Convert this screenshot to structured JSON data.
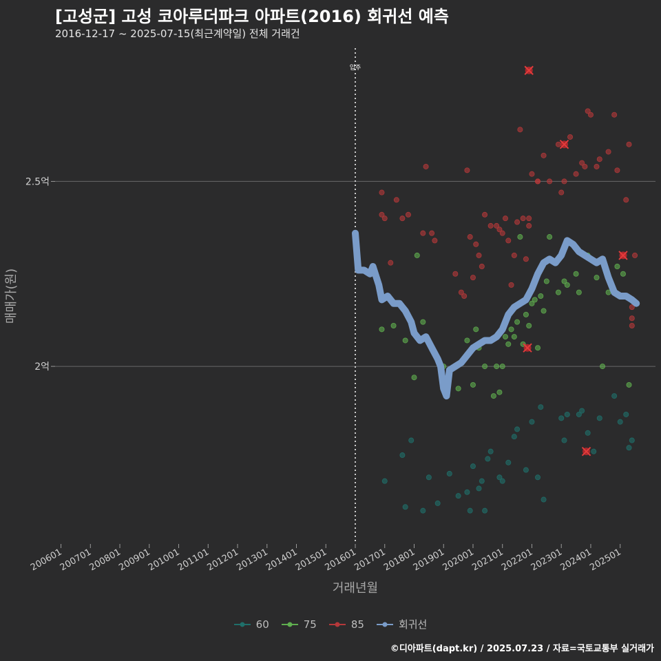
{
  "chart_data": {
    "type": "scatter",
    "title": "[고성군] 고성 코아루더파크 아파트(2016) 회귀선 예측",
    "subtitle": "2016-12-17 ~ 2025-07-15(최근계약일) 전체 거래건",
    "xlabel": "거래년월",
    "ylabel": "매매가(원)",
    "x_ticks": [
      "200601",
      "200701",
      "200801",
      "200901",
      "201001",
      "201101",
      "201201",
      "201301",
      "201401",
      "201501",
      "201601",
      "201701",
      "201801",
      "201901",
      "202001",
      "202101",
      "202201",
      "202301",
      "202401",
      "202501"
    ],
    "x_range": [
      2005.8,
      2026.2
    ],
    "y_ticks": [
      {
        "value": 2.0,
        "label": "2억"
      },
      {
        "value": 2.5,
        "label": "2.5억"
      }
    ],
    "y_range": [
      1.52,
      2.86
    ],
    "annotation": {
      "x": 2016.0,
      "label": "입주"
    },
    "series": [
      {
        "name": "60",
        "color": "#1f6f6a",
        "points": [
          [
            2017.0,
            1.69
          ],
          [
            2017.6,
            1.76
          ],
          [
            2017.7,
            1.62
          ],
          [
            2017.9,
            1.8
          ],
          [
            2018.3,
            1.61
          ],
          [
            2018.5,
            1.7
          ],
          [
            2018.8,
            1.63
          ],
          [
            2019.2,
            1.71
          ],
          [
            2019.5,
            1.65
          ],
          [
            2019.8,
            1.66
          ],
          [
            2019.9,
            1.61
          ],
          [
            2020.0,
            1.73
          ],
          [
            2020.2,
            1.67
          ],
          [
            2020.3,
            1.69
          ],
          [
            2020.4,
            1.61
          ],
          [
            2020.5,
            1.75
          ],
          [
            2020.6,
            1.77
          ],
          [
            2020.9,
            1.7
          ],
          [
            2021.0,
            1.69
          ],
          [
            2021.2,
            1.74
          ],
          [
            2021.4,
            1.81
          ],
          [
            2021.5,
            1.83
          ],
          [
            2021.8,
            1.72
          ],
          [
            2022.0,
            1.85
          ],
          [
            2022.2,
            1.7
          ],
          [
            2022.4,
            1.64
          ],
          [
            2022.3,
            1.89
          ],
          [
            2023.0,
            1.86
          ],
          [
            2023.1,
            1.8
          ],
          [
            2023.2,
            1.87
          ],
          [
            2023.6,
            1.87
          ],
          [
            2023.7,
            1.88
          ],
          [
            2023.9,
            1.82
          ],
          [
            2024.1,
            1.77
          ],
          [
            2024.3,
            1.86
          ],
          [
            2024.8,
            1.92
          ],
          [
            2025.0,
            1.85
          ],
          [
            2025.2,
            1.87
          ],
          [
            2025.4,
            1.8
          ],
          [
            2025.3,
            1.78
          ]
        ]
      },
      {
        "name": "75",
        "color": "#5fae4f",
        "points": [
          [
            2016.9,
            2.1
          ],
          [
            2017.3,
            2.11
          ],
          [
            2017.7,
            2.07
          ],
          [
            2018.1,
            2.3
          ],
          [
            2018.0,
            1.97
          ],
          [
            2018.3,
            2.12
          ],
          [
            2018.6,
            2.05
          ],
          [
            2019.0,
            2.0
          ],
          [
            2019.5,
            1.94
          ],
          [
            2019.8,
            2.07
          ],
          [
            2020.0,
            1.95
          ],
          [
            2020.1,
            2.1
          ],
          [
            2020.2,
            2.05
          ],
          [
            2020.4,
            2.0
          ],
          [
            2020.7,
            1.92
          ],
          [
            2020.8,
            2.0
          ],
          [
            2020.9,
            1.93
          ],
          [
            2021.0,
            2.0
          ],
          [
            2021.1,
            2.08
          ],
          [
            2021.2,
            2.06
          ],
          [
            2021.3,
            2.1
          ],
          [
            2021.4,
            2.08
          ],
          [
            2021.5,
            2.12
          ],
          [
            2021.7,
            2.06
          ],
          [
            2021.8,
            2.14
          ],
          [
            2021.9,
            2.11
          ],
          [
            2022.0,
            2.17
          ],
          [
            2022.1,
            2.18
          ],
          [
            2022.2,
            2.05
          ],
          [
            2022.3,
            2.19
          ],
          [
            2022.4,
            2.15
          ],
          [
            2022.5,
            2.23
          ],
          [
            2022.6,
            2.35
          ],
          [
            2022.9,
            2.2
          ],
          [
            2023.1,
            2.23
          ],
          [
            2023.2,
            2.22
          ],
          [
            2023.5,
            2.25
          ],
          [
            2023.6,
            2.2
          ],
          [
            2023.9,
            2.3
          ],
          [
            2024.2,
            2.24
          ],
          [
            2024.4,
            2.0
          ],
          [
            2024.6,
            2.2
          ],
          [
            2024.9,
            2.27
          ],
          [
            2025.1,
            2.25
          ],
          [
            2025.3,
            1.95
          ],
          [
            2021.6,
            2.35
          ]
        ]
      },
      {
        "name": "85",
        "color": "#b5383a",
        "points": [
          [
            2016.9,
            2.47
          ],
          [
            2016.9,
            2.41
          ],
          [
            2017.0,
            2.4
          ],
          [
            2017.2,
            2.28
          ],
          [
            2017.4,
            2.45
          ],
          [
            2017.6,
            2.4
          ],
          [
            2017.8,
            2.41
          ],
          [
            2018.3,
            2.36
          ],
          [
            2018.4,
            2.54
          ],
          [
            2018.6,
            2.36
          ],
          [
            2018.7,
            2.34
          ],
          [
            2019.4,
            2.25
          ],
          [
            2019.6,
            2.2
          ],
          [
            2019.7,
            2.19
          ],
          [
            2019.8,
            2.53
          ],
          [
            2019.9,
            2.35
          ],
          [
            2020.0,
            2.24
          ],
          [
            2020.1,
            2.33
          ],
          [
            2020.2,
            2.3
          ],
          [
            2020.3,
            2.27
          ],
          [
            2020.4,
            2.41
          ],
          [
            2020.6,
            2.38
          ],
          [
            2020.8,
            2.38
          ],
          [
            2020.9,
            2.37
          ],
          [
            2021.0,
            2.36
          ],
          [
            2021.1,
            2.4
          ],
          [
            2021.2,
            2.34
          ],
          [
            2021.3,
            2.22
          ],
          [
            2021.4,
            2.3
          ],
          [
            2021.5,
            2.39
          ],
          [
            2021.6,
            2.64
          ],
          [
            2021.7,
            2.4
          ],
          [
            2021.8,
            2.29
          ],
          [
            2021.9,
            2.38
          ],
          [
            2022.0,
            2.52
          ],
          [
            2022.2,
            2.5
          ],
          [
            2022.4,
            2.57
          ],
          [
            2022.6,
            2.5
          ],
          [
            2022.9,
            2.6
          ],
          [
            2023.0,
            2.47
          ],
          [
            2023.1,
            2.5
          ],
          [
            2023.3,
            2.62
          ],
          [
            2023.5,
            2.52
          ],
          [
            2023.7,
            2.55
          ],
          [
            2023.8,
            2.54
          ],
          [
            2023.9,
            2.69
          ],
          [
            2024.0,
            2.68
          ],
          [
            2024.2,
            2.54
          ],
          [
            2024.3,
            2.56
          ],
          [
            2024.6,
            2.58
          ],
          [
            2024.8,
            2.68
          ],
          [
            2024.9,
            2.53
          ],
          [
            2025.1,
            2.3
          ],
          [
            2025.2,
            2.45
          ],
          [
            2025.3,
            2.6
          ],
          [
            2025.4,
            2.16
          ],
          [
            2025.4,
            2.13
          ],
          [
            2025.5,
            2.3
          ],
          [
            2025.4,
            2.11
          ],
          [
            2022.2,
            2.5
          ],
          [
            2021.9,
            2.4
          ]
        ]
      },
      {
        "name": "회귀선",
        "color": "#7a9cc9",
        "points": [
          [
            2016.0,
            2.36
          ],
          [
            2016.1,
            2.26
          ],
          [
            2016.3,
            2.26
          ],
          [
            2016.5,
            2.25
          ],
          [
            2016.6,
            2.27
          ],
          [
            2016.8,
            2.22
          ],
          [
            2016.9,
            2.18
          ],
          [
            2017.1,
            2.19
          ],
          [
            2017.3,
            2.17
          ],
          [
            2017.5,
            2.17
          ],
          [
            2017.7,
            2.15
          ],
          [
            2017.9,
            2.12
          ],
          [
            2018.0,
            2.09
          ],
          [
            2018.2,
            2.07
          ],
          [
            2018.4,
            2.08
          ],
          [
            2018.6,
            2.05
          ],
          [
            2018.8,
            2.02
          ],
          [
            2018.9,
            2.0
          ],
          [
            2019.0,
            1.94
          ],
          [
            2019.1,
            1.92
          ],
          [
            2019.2,
            1.99
          ],
          [
            2019.4,
            2.0
          ],
          [
            2019.6,
            2.01
          ],
          [
            2019.8,
            2.03
          ],
          [
            2020.0,
            2.05
          ],
          [
            2020.2,
            2.06
          ],
          [
            2020.4,
            2.07
          ],
          [
            2020.6,
            2.07
          ],
          [
            2020.8,
            2.08
          ],
          [
            2021.0,
            2.1
          ],
          [
            2021.2,
            2.14
          ],
          [
            2021.4,
            2.16
          ],
          [
            2021.6,
            2.17
          ],
          [
            2021.8,
            2.18
          ],
          [
            2022.0,
            2.21
          ],
          [
            2022.2,
            2.25
          ],
          [
            2022.4,
            2.28
          ],
          [
            2022.6,
            2.29
          ],
          [
            2022.8,
            2.28
          ],
          [
            2023.0,
            2.3
          ],
          [
            2023.2,
            2.34
          ],
          [
            2023.4,
            2.33
          ],
          [
            2023.6,
            2.31
          ],
          [
            2023.8,
            2.3
          ],
          [
            2024.0,
            2.29
          ],
          [
            2024.2,
            2.28
          ],
          [
            2024.4,
            2.29
          ],
          [
            2024.6,
            2.24
          ],
          [
            2024.8,
            2.2
          ],
          [
            2025.0,
            2.19
          ],
          [
            2025.2,
            2.19
          ],
          [
            2025.4,
            2.18
          ],
          [
            2025.55,
            2.17
          ]
        ]
      }
    ],
    "highlighted": [
      {
        "x": 2021.9,
        "y": 2.8
      },
      {
        "x": 2023.1,
        "y": 2.6
      },
      {
        "x": 2025.1,
        "y": 2.3
      },
      {
        "x": 2021.85,
        "y": 2.05
      },
      {
        "x": 2023.85,
        "y": 1.77
      }
    ]
  },
  "footer": "©디아파트(dapt.kr) / 2025.07.23 / 자료=국토교통부 실거래가"
}
